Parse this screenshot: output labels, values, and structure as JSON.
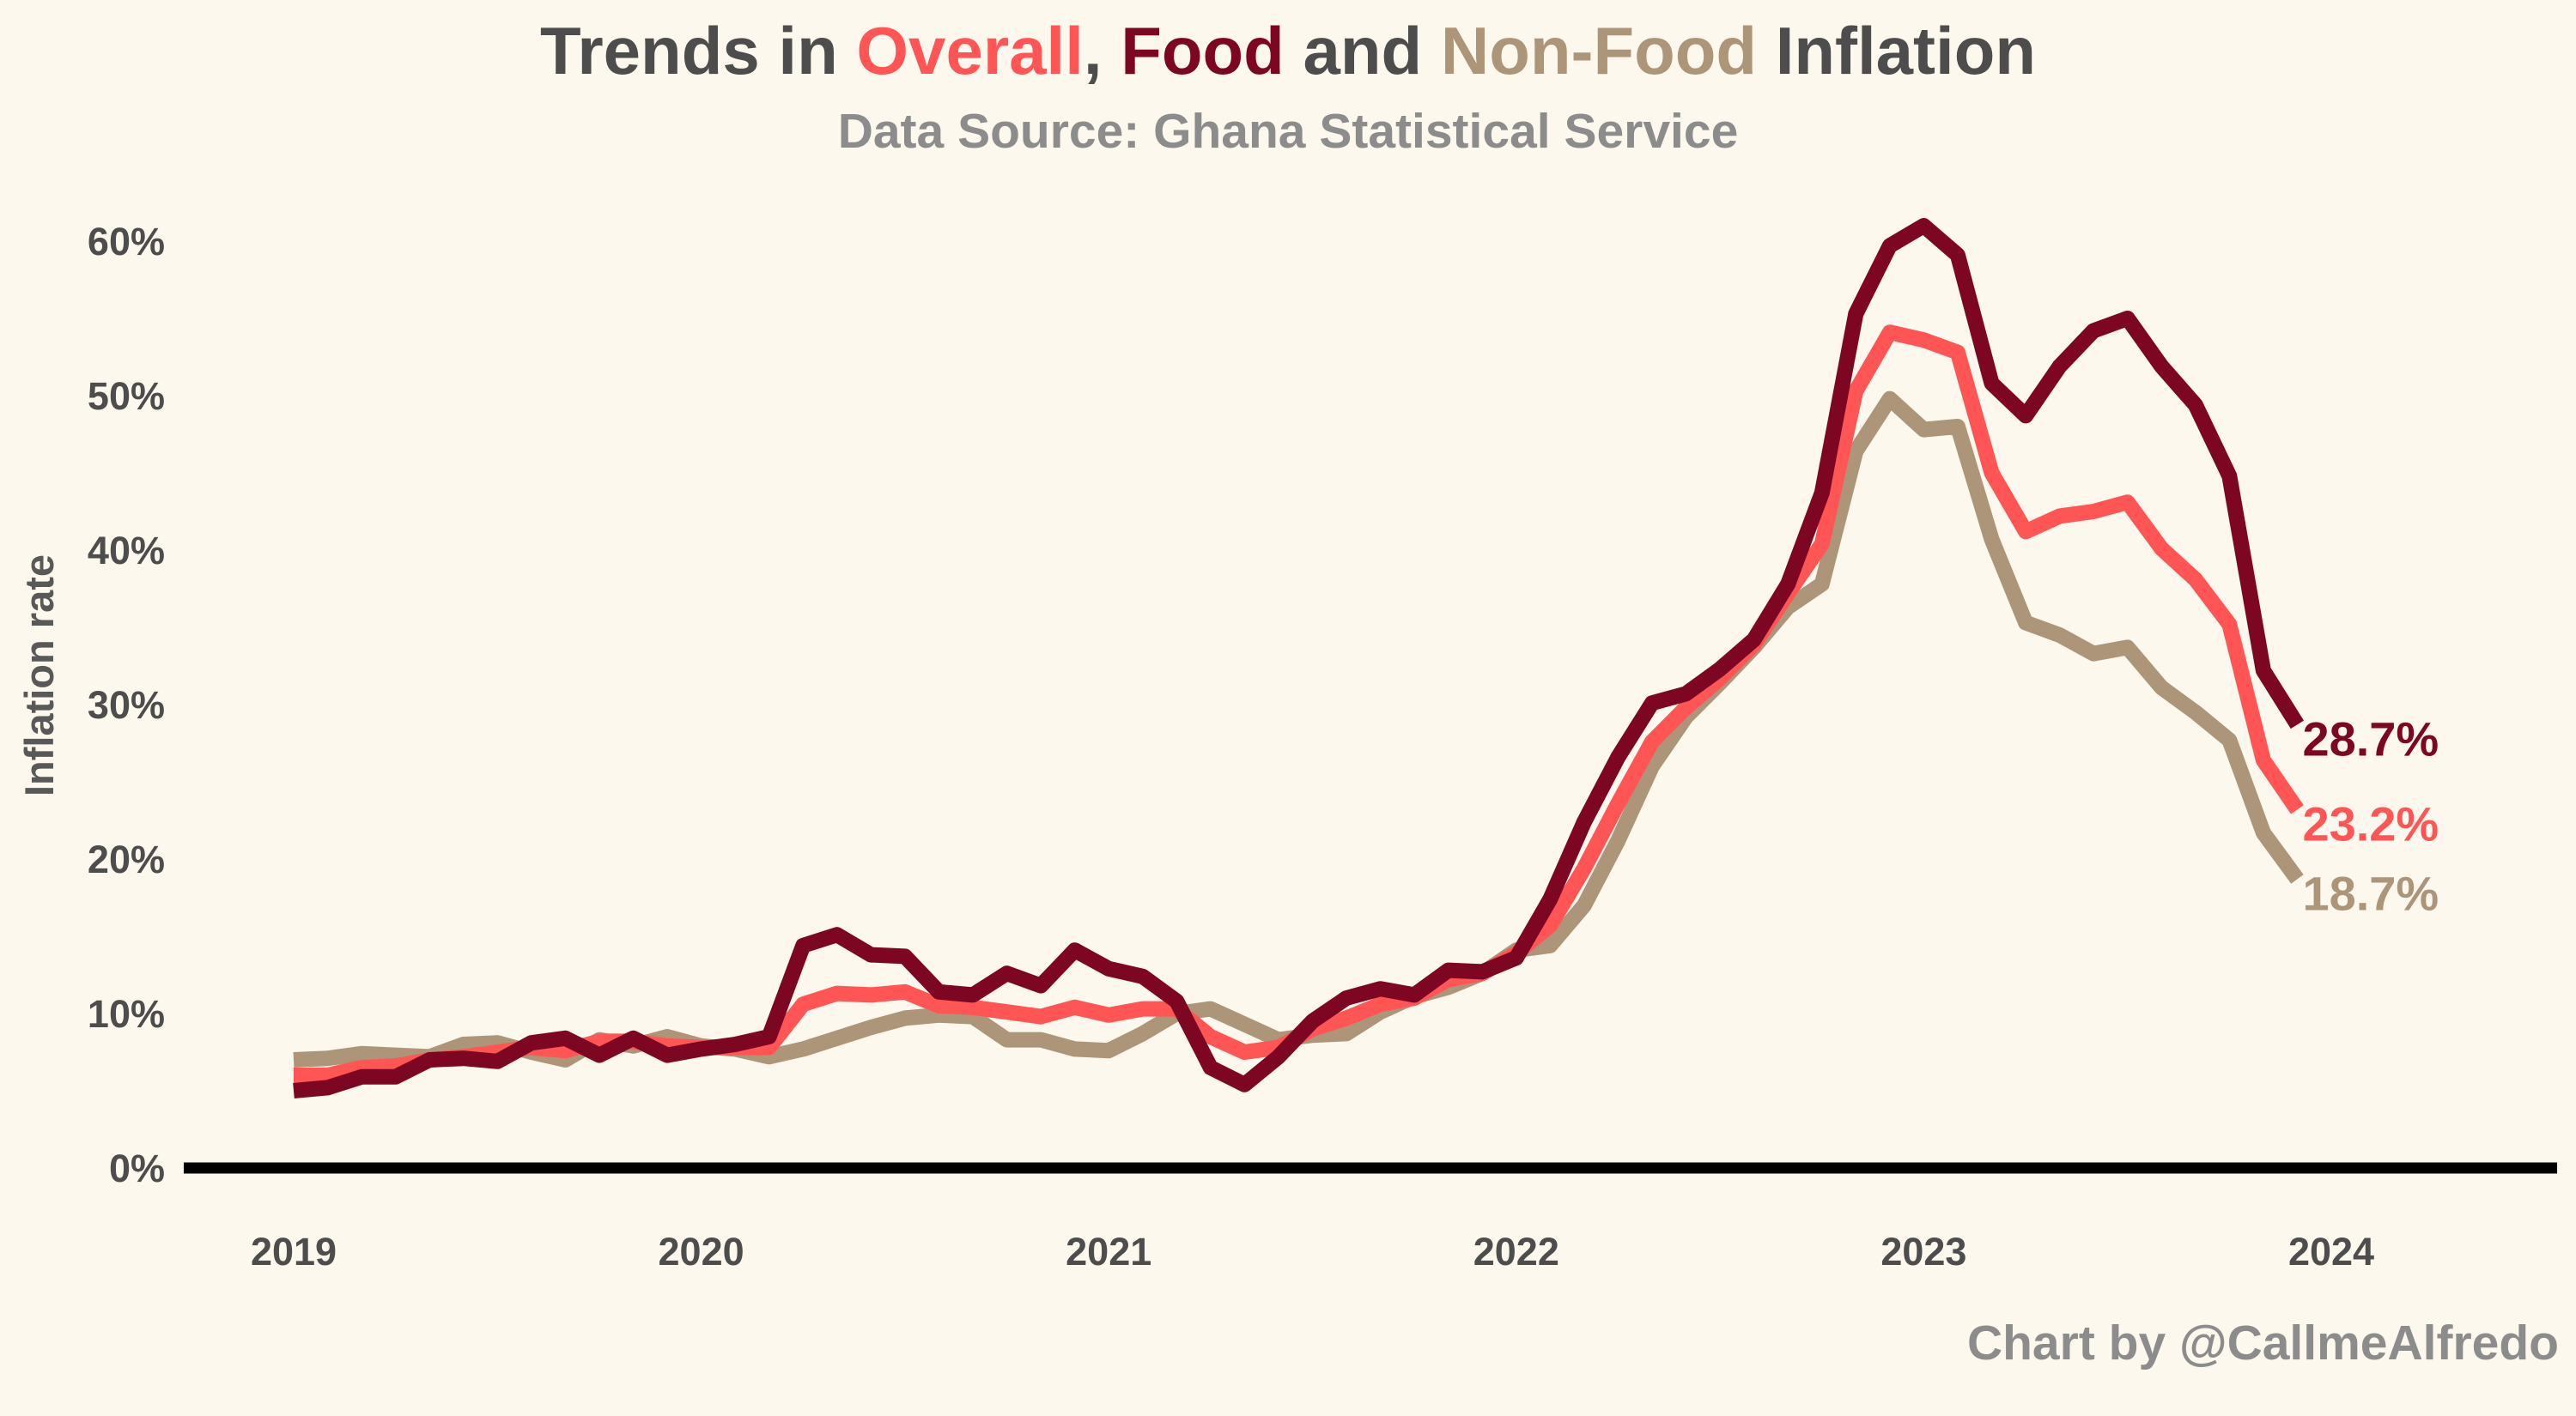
{
  "title": {
    "part1": "Trends in ",
    "overall": "Overall",
    "comma": ", ",
    "food": "Food",
    "and": " and ",
    "nonfood": "Non-Food",
    "part_end": " Inflation"
  },
  "subtitle": "Data Source: Ghana Statistical Service",
  "caption": "Chart by @CallmeAlfredo",
  "colors": {
    "overall": "#ff5555",
    "food": "#7d0722",
    "nonfood": "#ad957a",
    "text": "#4d4d4d",
    "background": "#fdf8ee"
  },
  "chart_data": {
    "type": "line",
    "x": [
      "2019-01",
      "2019-02",
      "2019-03",
      "2019-04",
      "2019-05",
      "2019-06",
      "2019-07",
      "2019-08",
      "2019-09",
      "2019-10",
      "2019-11",
      "2019-12",
      "2020-01",
      "2020-02",
      "2020-03",
      "2020-04",
      "2020-05",
      "2020-06",
      "2020-07",
      "2020-08",
      "2020-09",
      "2020-10",
      "2020-11",
      "2020-12",
      "2021-01",
      "2021-02",
      "2021-03",
      "2021-04",
      "2021-05",
      "2021-06",
      "2021-07",
      "2021-08",
      "2021-09",
      "2021-10",
      "2021-11",
      "2021-12",
      "2022-01",
      "2022-02",
      "2022-03",
      "2022-04",
      "2022-05",
      "2022-06",
      "2022-07",
      "2022-08",
      "2022-09",
      "2022-10",
      "2022-11",
      "2022-12",
      "2023-01",
      "2023-02",
      "2023-03",
      "2023-04",
      "2023-05",
      "2023-06",
      "2023-07",
      "2023-08",
      "2023-09",
      "2023-10",
      "2023-11",
      "2023-12"
    ],
    "series": [
      {
        "key": "overall",
        "values": [
          6.0,
          6.0,
          6.5,
          6.6,
          7.0,
          7.2,
          7.5,
          7.8,
          7.6,
          8.2,
          8.2,
          7.9,
          7.8,
          7.8,
          7.8,
          10.6,
          11.3,
          11.2,
          11.4,
          10.5,
          10.4,
          10.1,
          9.8,
          10.4,
          9.9,
          10.3,
          10.3,
          8.5,
          7.5,
          7.8,
          9.0,
          9.7,
          10.6,
          11.0,
          12.2,
          12.6,
          13.9,
          15.7,
          19.4,
          23.6,
          27.6,
          29.8,
          31.7,
          33.9,
          37.2,
          40.4,
          50.3,
          54.1,
          53.6,
          52.8,
          45.0,
          41.2,
          42.2,
          42.5,
          43.1,
          40.1,
          38.1,
          35.2,
          26.4,
          23.2
        ]
      },
      {
        "key": "food",
        "values": [
          5.0,
          5.2,
          5.9,
          5.9,
          7.0,
          7.1,
          6.9,
          8.1,
          8.4,
          7.3,
          8.4,
          7.3,
          7.7,
          8.0,
          8.5,
          14.4,
          15.1,
          13.8,
          13.7,
          11.4,
          11.2,
          12.6,
          11.8,
          14.1,
          12.9,
          12.4,
          10.8,
          6.5,
          5.4,
          7.2,
          9.5,
          11.0,
          11.6,
          11.2,
          12.8,
          12.7,
          13.6,
          17.4,
          22.4,
          26.6,
          30.1,
          30.7,
          32.3,
          34.2,
          37.8,
          43.7,
          55.3,
          59.7,
          61.0,
          59.1,
          50.8,
          48.7,
          51.9,
          54.2,
          55.0,
          51.9,
          49.4,
          44.8,
          32.2,
          28.7
        ]
      },
      {
        "key": "nonfood",
        "values": [
          7.0,
          7.1,
          7.4,
          7.3,
          7.2,
          8.0,
          8.1,
          7.5,
          7.0,
          8.3,
          7.9,
          8.5,
          7.9,
          7.7,
          7.2,
          7.7,
          8.4,
          9.1,
          9.7,
          9.9,
          9.8,
          8.3,
          8.3,
          7.7,
          7.6,
          8.7,
          10.0,
          10.3,
          9.3,
          8.3,
          8.6,
          8.7,
          10.1,
          11.1,
          11.7,
          12.6,
          14.1,
          14.4,
          17.0,
          21.2,
          26.0,
          29.2,
          31.4,
          33.7,
          36.3,
          37.8,
          46.4,
          49.8,
          47.8,
          48.0,
          40.7,
          35.3,
          34.5,
          33.3,
          33.7,
          31.1,
          29.5,
          27.7,
          21.7,
          18.7
        ]
      }
    ],
    "end_labels": {
      "overall": "23.2%",
      "food": "28.7%",
      "nonfood": "18.7%"
    },
    "xticks": [
      "2019",
      "2020",
      "2021",
      "2022",
      "2023",
      "2024"
    ],
    "yticks": [
      "0%",
      "10%",
      "20%",
      "30%",
      "40%",
      "50%",
      "60%"
    ],
    "ylabel": "Inflation rate",
    "xlabel": "",
    "ylim": [
      0,
      62
    ],
    "grid": false,
    "legend": "none (colors encoded in title)"
  }
}
